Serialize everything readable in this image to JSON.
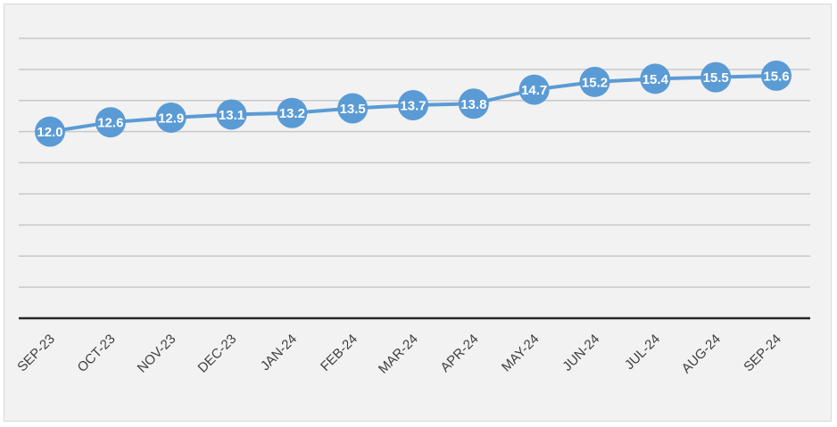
{
  "chart_data": {
    "type": "line",
    "title": "",
    "xlabel": "",
    "ylabel": "",
    "categories": [
      "SEP-23",
      "OCT-23",
      "NOV-23",
      "DEC-23",
      "JAN-24",
      "FEB-24",
      "MAR-24",
      "APR-24",
      "MAY-24",
      "JUN-24",
      "JUL-24",
      "AUG-24",
      "SEP-24"
    ],
    "series": [
      {
        "values": [
          12.0,
          12.6,
          12.9,
          13.1,
          13.2,
          13.5,
          13.7,
          13.8,
          14.7,
          15.2,
          15.4,
          15.5,
          15.6
        ],
        "labels": [
          "12.0",
          "12.6",
          "12.9",
          "13.1",
          "13.2",
          "13.5",
          "13.7",
          "13.8",
          "14.7",
          "15.2",
          "15.4",
          "15.5",
          "15.6"
        ],
        "color": "#5b9bd5"
      }
    ],
    "ylim": [
      0,
      18
    ],
    "grid_step": 2,
    "grid": true,
    "legend": "none",
    "background": "#f2f2f2",
    "gridline_color": "#c8c8c8",
    "baseline_color": "#262626",
    "data_label_color": "#ffffff",
    "tick_label_color": "#404040"
  }
}
